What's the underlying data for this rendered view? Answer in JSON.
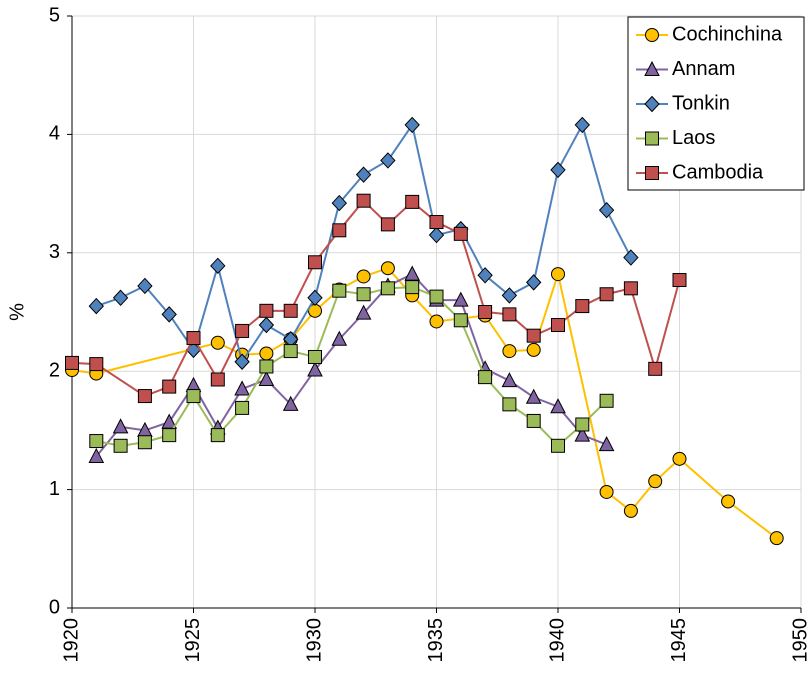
{
  "chart_data": {
    "type": "line",
    "y_label": "%",
    "xlim": [
      1920,
      1950
    ],
    "xticks": [
      1920,
      1925,
      1930,
      1935,
      1940,
      1945,
      1950
    ],
    "ylim": [
      0,
      5
    ],
    "yticks": [
      0,
      1,
      2,
      3,
      4,
      5
    ],
    "grid": true,
    "legend": "upper right",
    "series": [
      {
        "name": "Cochinchina",
        "color": "#ffc000",
        "marker": "circle",
        "x": [
          1920,
          1921,
          1926,
          1927,
          1928,
          1929,
          1930,
          1931,
          1932,
          1933,
          1934,
          1935,
          1937,
          1938,
          1939,
          1940,
          1942,
          1943,
          1944,
          1945,
          1947,
          1949
        ],
        "values": [
          2.01,
          1.98,
          2.24,
          2.14,
          2.15,
          2.27,
          2.51,
          2.69,
          2.8,
          2.87,
          2.64,
          2.42,
          2.47,
          2.17,
          2.18,
          2.82,
          0.98,
          0.82,
          1.07,
          1.26,
          0.9,
          0.59
        ]
      },
      {
        "name": "Annam",
        "color": "#8064a2",
        "marker": "triangle",
        "x": [
          1921,
          1922,
          1923,
          1924,
          1925,
          1926,
          1927,
          1928,
          1929,
          1930,
          1931,
          1932,
          1933,
          1934,
          1935,
          1936,
          1937,
          1938,
          1939,
          1940,
          1941,
          1942
        ],
        "values": [
          1.28,
          1.53,
          1.5,
          1.57,
          1.88,
          1.52,
          1.85,
          1.93,
          1.72,
          2.01,
          2.27,
          2.49,
          2.72,
          2.82,
          2.6,
          2.6,
          2.02,
          1.92,
          1.78,
          1.7,
          1.46,
          1.38
        ]
      },
      {
        "name": "Tonkin",
        "color": "#4f81bd",
        "marker": "diamond",
        "x": [
          1921,
          1922,
          1923,
          1924,
          1925,
          1926,
          1927,
          1928,
          1929,
          1930,
          1931,
          1932,
          1933,
          1934,
          1935,
          1936,
          1937,
          1938,
          1939,
          1940,
          1941,
          1942,
          1943
        ],
        "values": [
          2.55,
          2.62,
          2.72,
          2.48,
          2.18,
          2.89,
          2.08,
          2.39,
          2.27,
          2.62,
          3.42,
          3.66,
          3.78,
          4.08,
          3.15,
          3.2,
          2.81,
          2.64,
          2.75,
          3.7,
          4.08,
          3.36,
          2.96
        ]
      },
      {
        "name": "Laos",
        "color": "#9bbb59",
        "marker": "square",
        "x": [
          1921,
          1922,
          1923,
          1924,
          1925,
          1926,
          1927,
          1928,
          1929,
          1930,
          1931,
          1932,
          1933,
          1934,
          1935,
          1936,
          1937,
          1938,
          1939,
          1940,
          1941,
          1942
        ],
        "values": [
          1.41,
          1.37,
          1.4,
          1.46,
          1.79,
          1.46,
          1.69,
          2.04,
          2.17,
          2.12,
          2.68,
          2.65,
          2.7,
          2.71,
          2.63,
          2.43,
          1.95,
          1.72,
          1.58,
          1.37,
          1.55,
          1.75
        ]
      },
      {
        "name": "Cambodia",
        "color": "#c0504d",
        "marker": "square",
        "x": [
          1920,
          1921,
          1923,
          1924,
          1925,
          1926,
          1927,
          1928,
          1929,
          1930,
          1931,
          1932,
          1933,
          1934,
          1935,
          1936,
          1937,
          1938,
          1939,
          1940,
          1941,
          1942,
          1943,
          1944,
          1945
        ],
        "values": [
          2.07,
          2.06,
          1.79,
          1.87,
          2.28,
          1.93,
          2.34,
          2.51,
          2.51,
          2.92,
          3.19,
          3.44,
          3.24,
          3.43,
          3.26,
          3.16,
          2.5,
          2.48,
          2.3,
          2.39,
          2.55,
          2.65,
          2.7,
          2.02,
          2.77
        ]
      }
    ]
  }
}
